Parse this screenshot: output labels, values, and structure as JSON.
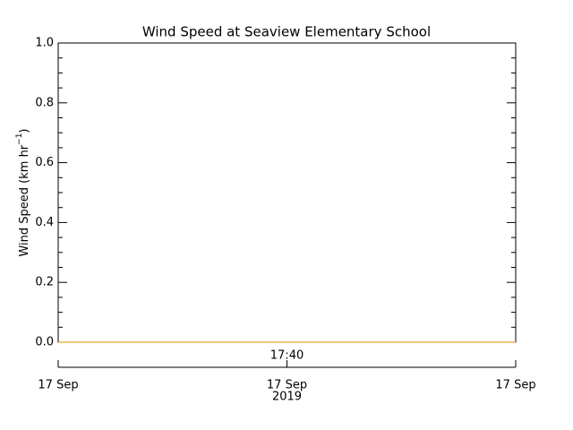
{
  "chart_data": {
    "type": "line",
    "title": "Wind Speed at Seaview Elementary School",
    "y_label": {
      "text": "Wind Speed (km hr",
      "sup": "−1",
      "end": ")"
    },
    "categories": [
      "17 Sep",
      "17 Sep",
      "17 Sep"
    ],
    "time_label": "17:40",
    "year_label": "2019",
    "series": [
      {
        "name": "Wind Speed",
        "color": "#e8a33a",
        "values": [
          0,
          0,
          0
        ]
      }
    ],
    "ylim": [
      0,
      1
    ],
    "yticks": [
      {
        "value": 0,
        "label": "0.0"
      },
      0.2,
      0.4,
      0.6,
      0.8,
      {
        "value": 1,
        "label": "1.0"
      }
    ],
    "yminorticks": [
      0.05,
      0.1,
      0.15,
      0.25,
      0.3,
      0.35,
      0.45,
      0.5,
      0.55,
      0.65,
      0.7,
      0.75,
      0.85,
      0.9,
      0.95
    ]
  }
}
